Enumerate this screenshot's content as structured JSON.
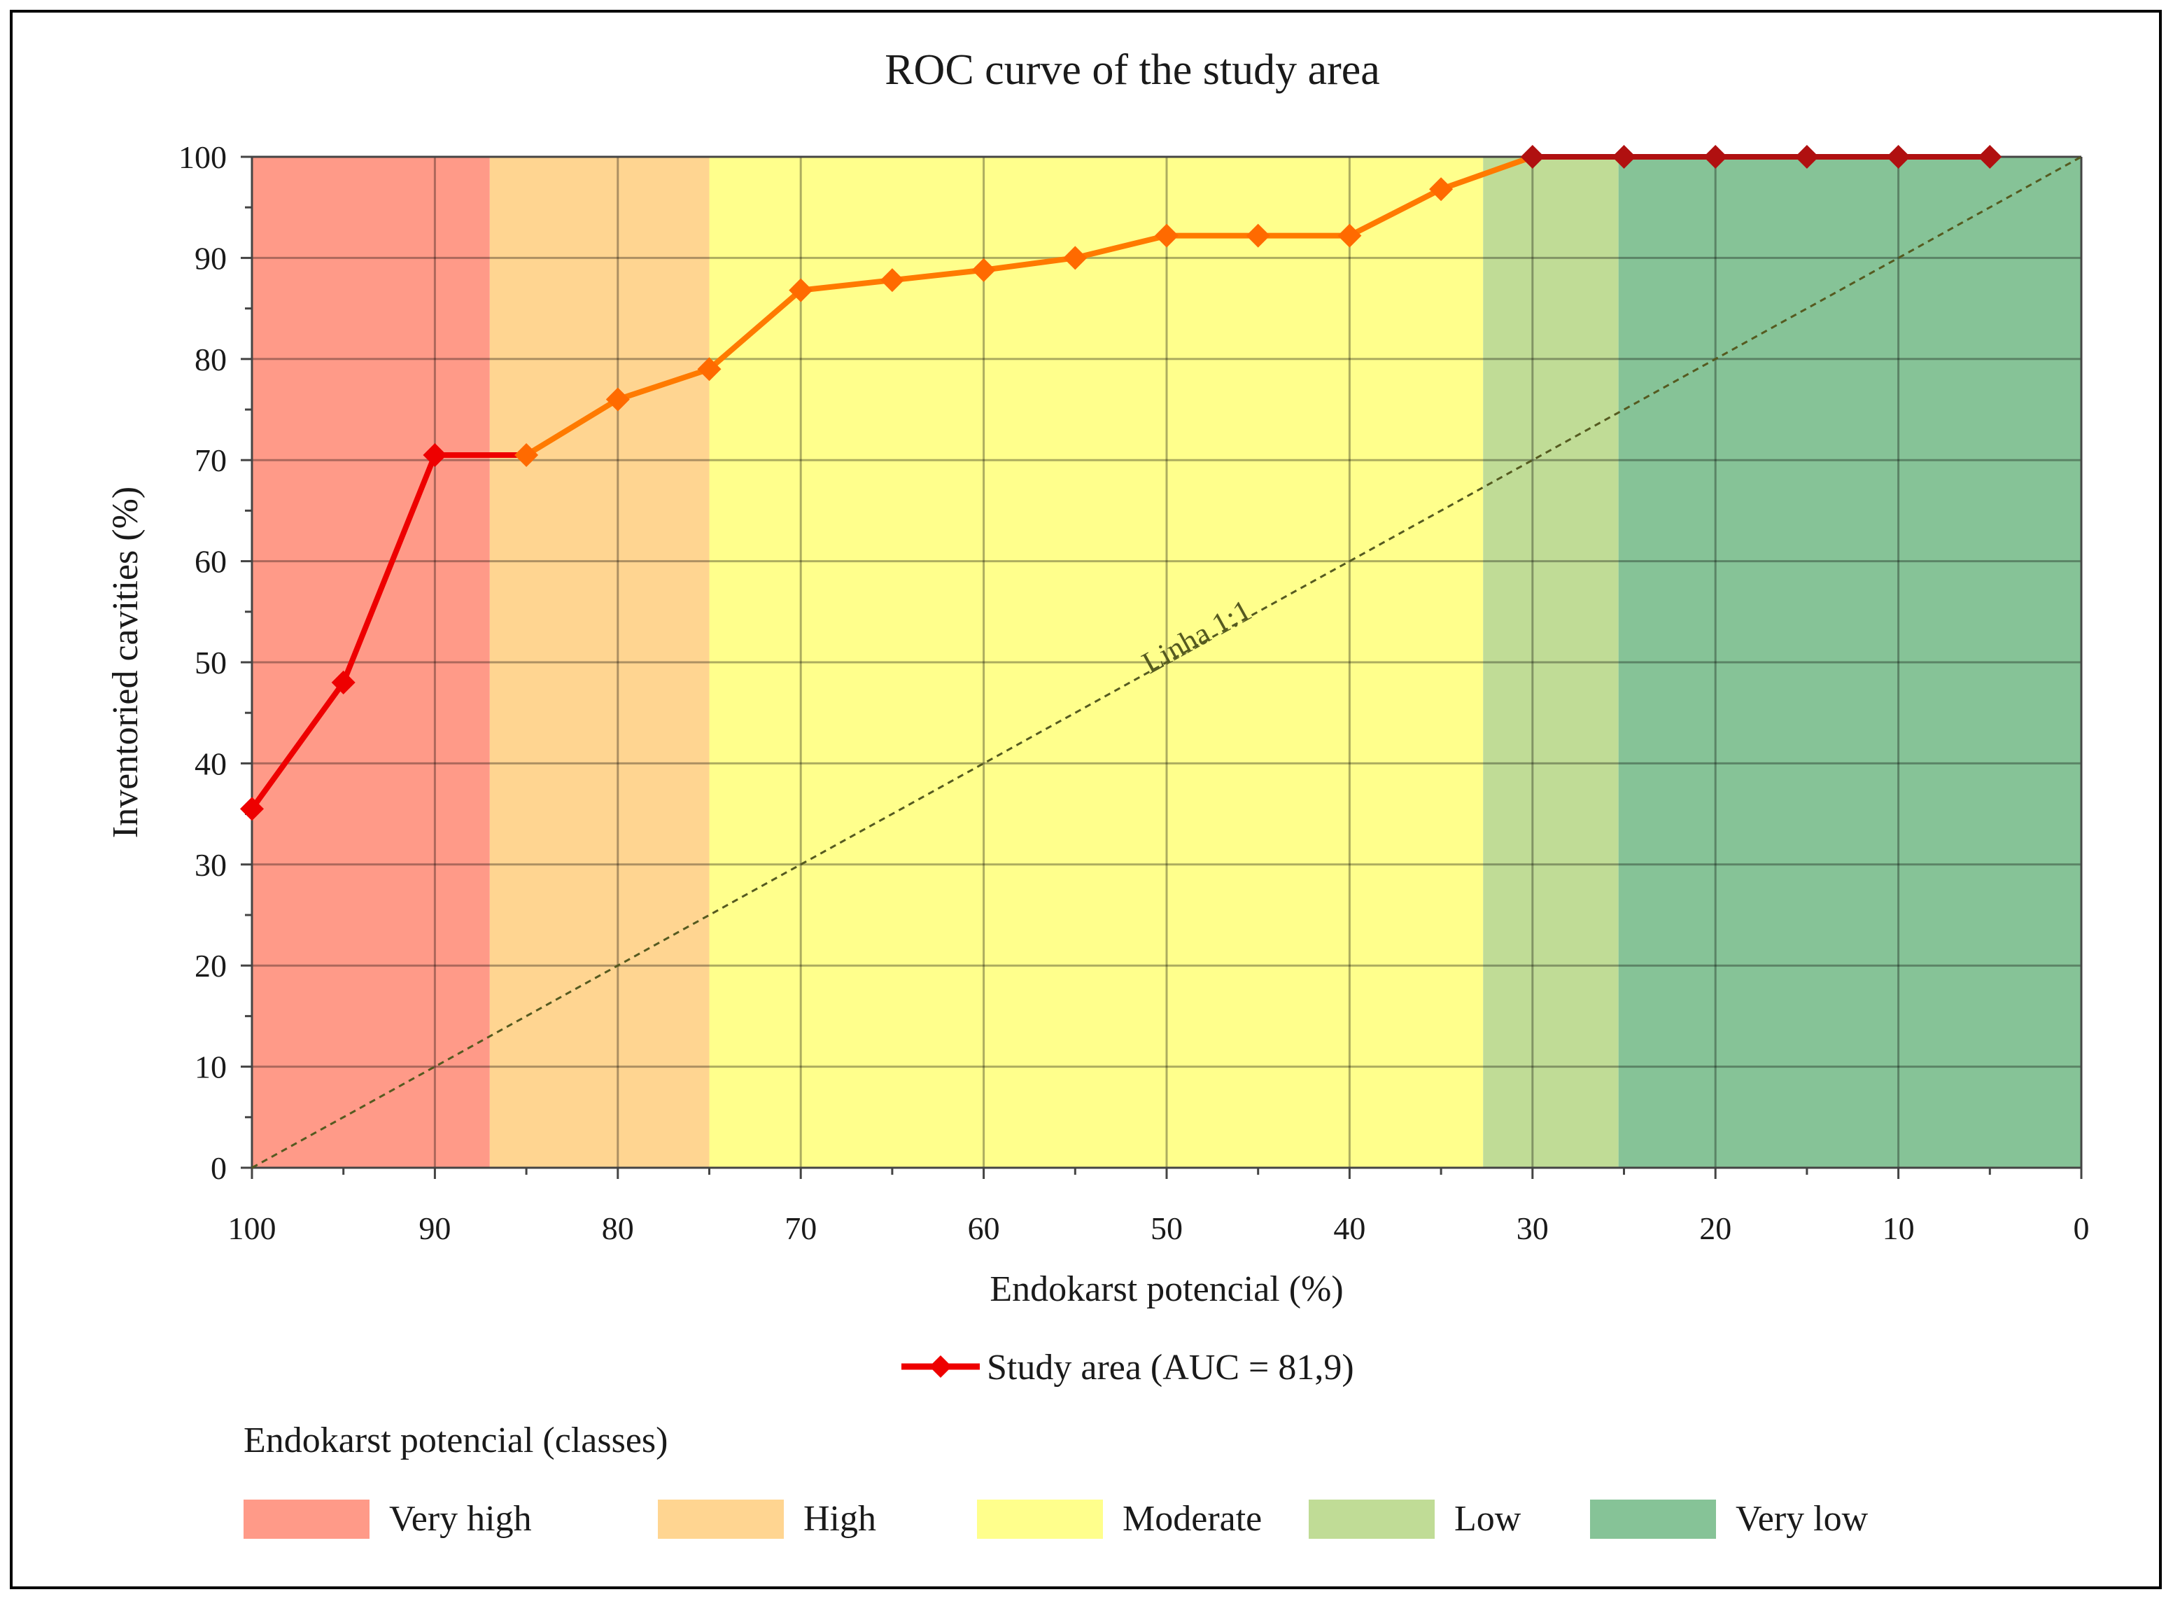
{
  "chart_data": {
    "type": "line",
    "title": "ROC curve of the study area",
    "xlabel": "Endokarst potencial (%)",
    "ylabel": "Inventoried cavities (%)",
    "xlim": [
      100,
      0
    ],
    "ylim": [
      0,
      100
    ],
    "x_ticks": [
      "100",
      "90",
      "80",
      "70",
      "60",
      "50",
      "40",
      "30",
      "20",
      "10",
      "0"
    ],
    "y_ticks": [
      "0",
      "10",
      "20",
      "30",
      "40",
      "50",
      "60",
      "70",
      "80",
      "90",
      "100"
    ],
    "grid": true,
    "bands": [
      {
        "name": "Very high",
        "from": 100,
        "to": 87,
        "color": "#ff9a88"
      },
      {
        "name": "High",
        "from": 87,
        "to": 75,
        "color": "#ffd591"
      },
      {
        "name": "Moderate",
        "from": 75,
        "to": 32.7,
        "color": "#ffff8c"
      },
      {
        "name": "Low",
        "from": 32.7,
        "to": 25.3,
        "color": "#c0dc96"
      },
      {
        "name": "Very low",
        "from": 25.3,
        "to": 0,
        "color": "#86c397"
      }
    ],
    "series": [
      {
        "name": "Study area (AUC = 81,9)",
        "x": [
          100,
          95,
          90,
          85,
          80,
          75,
          70,
          65,
          60,
          55,
          50,
          45,
          40,
          35,
          30,
          25,
          20,
          15,
          10,
          5
        ],
        "y": [
          35.5,
          48,
          70.5,
          70.5,
          76,
          79,
          86.8,
          87.8,
          88.8,
          90,
          92.2,
          92.2,
          92.2,
          96.8,
          100,
          100,
          100,
          100,
          100,
          100
        ]
      }
    ],
    "reference_line": {
      "label": "Linha 1:1",
      "from": [
        100,
        0
      ],
      "to": [
        0,
        100
      ]
    },
    "legend_position": "bottom-center",
    "classes_legend_title": "Endokarst potencial (classes)"
  },
  "colors": {
    "line_red": "#ee0000",
    "line_orange": "#ff7a00",
    "marker_red": "#ee0000",
    "marker_orange": "#ff6a00",
    "marker_dark": "#b01010",
    "reference": "#555a20"
  }
}
